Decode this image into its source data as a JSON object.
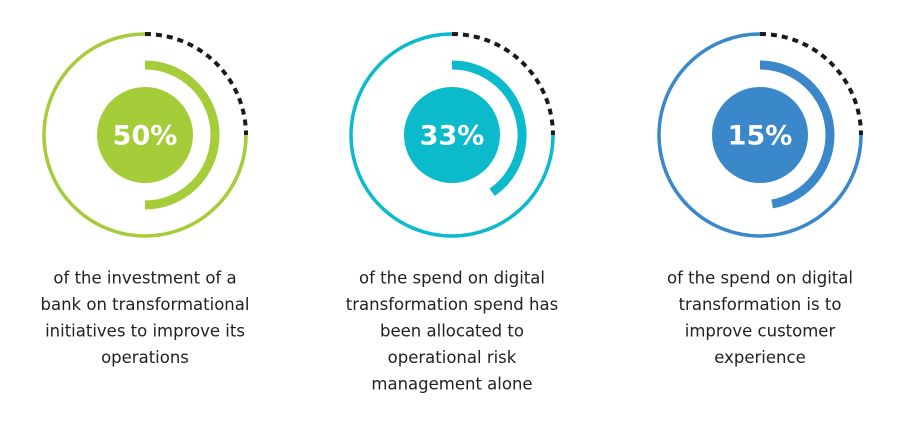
{
  "stats": [
    {
      "value": "50%",
      "lines": [
        "of the investment of a",
        "bank on transformational",
        "initiatives to improve its",
        "operations"
      ]
    },
    {
      "value": "33%",
      "lines": [
        "of the spend on digital",
        "transformation spend has",
        "been allocated to",
        "operational risk",
        "management alone"
      ]
    },
    {
      "value": "15%",
      "lines": [
        "of the spend on digital",
        "transformation is to",
        "improve customer",
        "experience"
      ]
    }
  ]
}
